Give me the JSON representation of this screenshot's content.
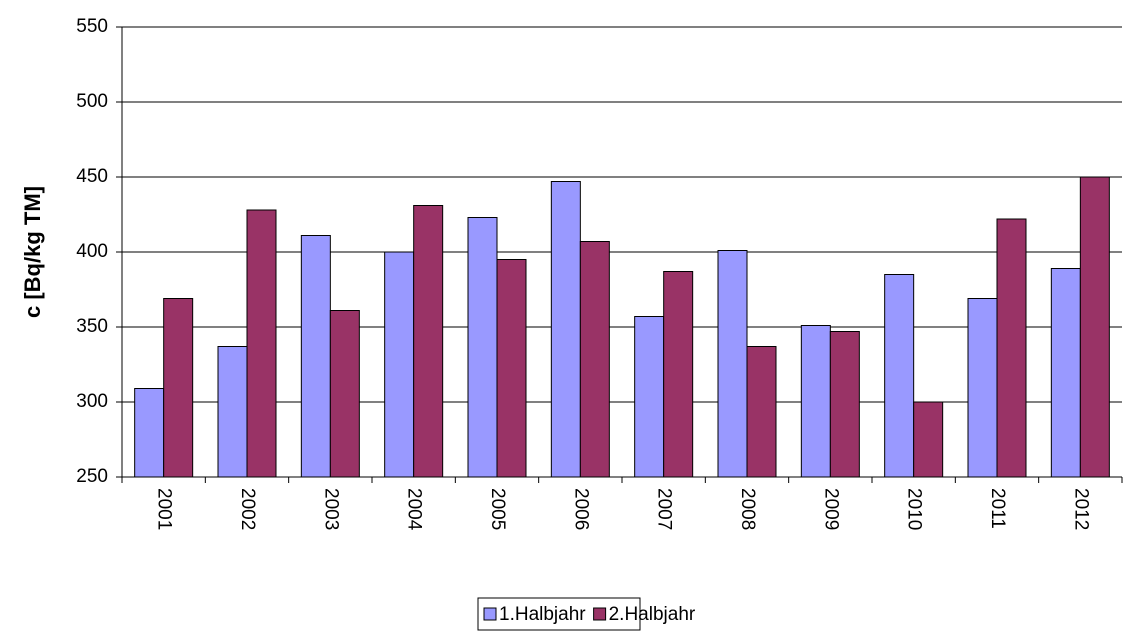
{
  "chart_data": {
    "type": "bar",
    "y_label": "c [Bq/kg TM]",
    "categories": [
      "2001",
      "2002",
      "2003",
      "2004",
      "2005",
      "2006",
      "2007",
      "2008",
      "2009",
      "2010",
      "2011",
      "2012"
    ],
    "series": [
      {
        "name": "1.Halbjahr",
        "color": "#9999ff",
        "values": [
          309,
          337,
          411,
          400,
          423,
          447,
          357,
          401,
          351,
          385,
          369,
          389
        ]
      },
      {
        "name": "2.Halbjahr",
        "color": "#993366",
        "values": [
          369,
          428,
          361,
          431,
          395,
          407,
          387,
          337,
          347,
          300,
          422,
          450
        ]
      }
    ],
    "ylim": [
      250,
      550
    ],
    "yticks": [
      250,
      300,
      350,
      400,
      450,
      500,
      550
    ],
    "grid": true,
    "legend": "bottom"
  }
}
